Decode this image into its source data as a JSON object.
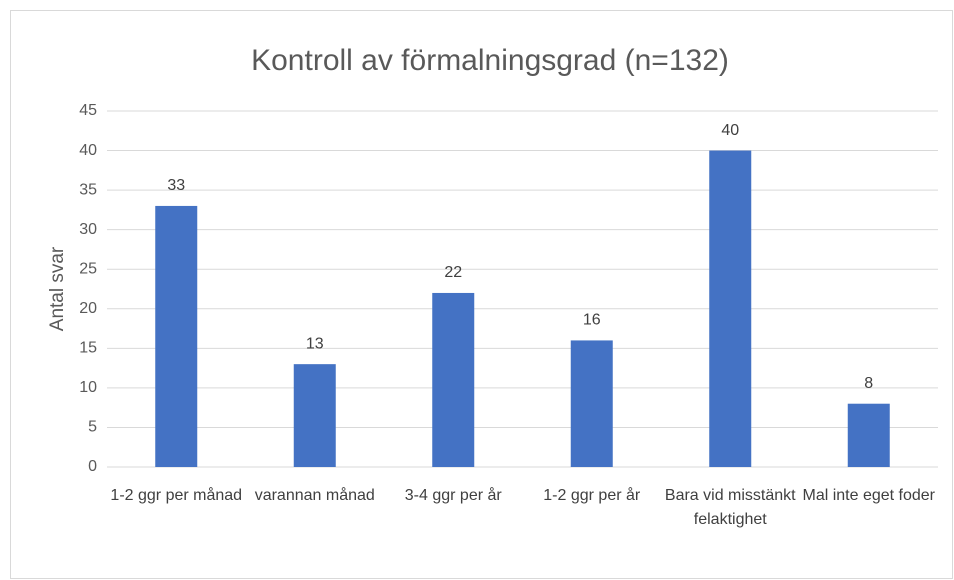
{
  "chart_data": {
    "type": "bar",
    "title": "Kontroll av förmalningsgrad (n=132)",
    "y_label": "Antal svar",
    "categories": [
      "1-2 ggr per månad",
      "varannan månad",
      "3-4 ggr per år",
      "1-2 ggr per år",
      "Bara vid misstänkt felaktighet",
      "Mal inte eget foder"
    ],
    "values": [
      33,
      13,
      22,
      16,
      40,
      8
    ],
    "color": "#4472c4",
    "ylim": [
      0,
      45
    ],
    "yticks": [
      0,
      5,
      10,
      15,
      20,
      25,
      30,
      35,
      40,
      45
    ],
    "grid": true
  }
}
